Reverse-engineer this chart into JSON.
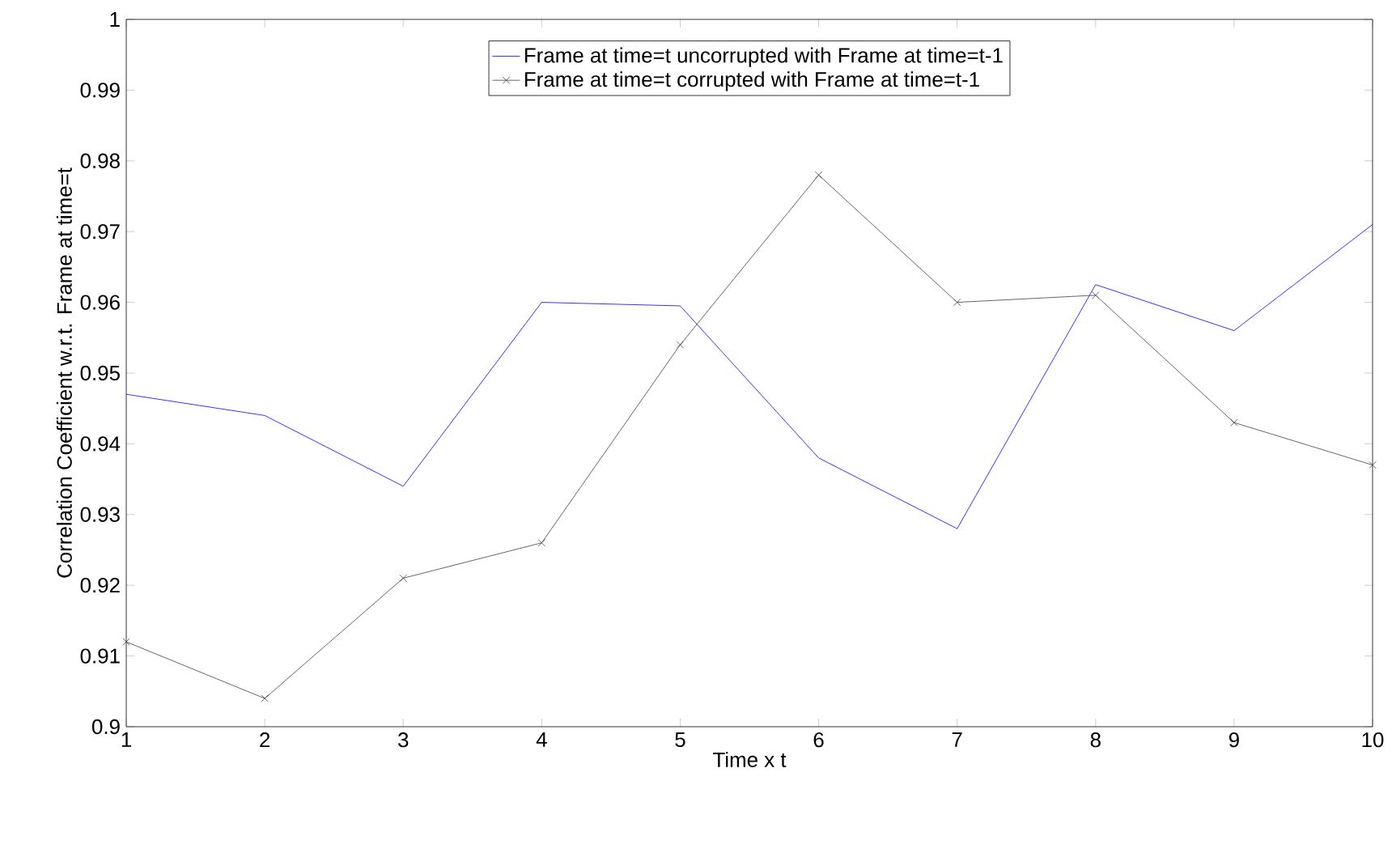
{
  "chart_data": {
    "type": "line",
    "xlabel": "Time x t",
    "ylabel": "Correlation Coefficient w.r.t. Frame at time=t",
    "x": [
      1,
      2,
      3,
      4,
      5,
      6,
      7,
      8,
      9,
      10
    ],
    "series": [
      {
        "name": "Frame at time=t uncorrupted with Frame at time=t-1",
        "color": "#0000ff",
        "marker": "none",
        "values": [
          0.947,
          0.944,
          0.934,
          0.96,
          0.9595,
          0.938,
          0.928,
          0.9625,
          0.956,
          0.971
        ]
      },
      {
        "name": "Frame at time=t corrupted with Frame at time=t-1",
        "color": "#404040",
        "marker": "cross",
        "values": [
          0.912,
          0.904,
          0.921,
          0.926,
          0.954,
          0.978,
          0.96,
          0.961,
          0.943,
          0.937
        ]
      }
    ],
    "xlim": [
      1,
      10
    ],
    "ylim": [
      0.9,
      1
    ],
    "xticks": [
      1,
      2,
      3,
      4,
      5,
      6,
      7,
      8,
      9,
      10
    ],
    "yticks": [
      0.9,
      0.91,
      0.92,
      0.93,
      0.94,
      0.95,
      0.96,
      0.97,
      0.98,
      0.99,
      1
    ],
    "grid": false,
    "legend": "top",
    "line_style": "solid"
  }
}
